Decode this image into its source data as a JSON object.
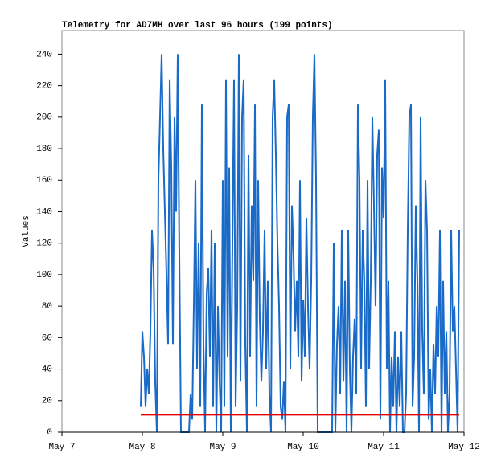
{
  "chart_data": {
    "type": "line",
    "title": "Telemetry for AD7MH over last 96 hours (199 points)",
    "y_label": "Values",
    "xlim": [
      0,
      5
    ],
    "xticks": [
      {
        "value": 0,
        "label": "May 7"
      },
      {
        "value": 1,
        "label": "May 8"
      },
      {
        "value": 2,
        "label": "May 9"
      },
      {
        "value": 3,
        "label": "May 10"
      },
      {
        "value": 4,
        "label": "May 11"
      },
      {
        "value": 5,
        "label": "May 12"
      }
    ],
    "ylim": [
      0,
      255
    ],
    "yticks": [
      0,
      20,
      40,
      60,
      80,
      100,
      120,
      140,
      160,
      180,
      200,
      220,
      240
    ],
    "grid": false,
    "series": [
      {
        "color": "#1a6ac8",
        "x": [
          0.98,
          1,
          1.02,
          1.04,
          1.06,
          1.08,
          1.1,
          1.12,
          1.14,
          1.16,
          1.18,
          1.2,
          1.22,
          1.24,
          1.26,
          1.28,
          1.3,
          1.32,
          1.34,
          1.36,
          1.38,
          1.4,
          1.42,
          1.44,
          1.46,
          1.48,
          1.5,
          1.52,
          1.54,
          1.56,
          1.58,
          1.6,
          1.62,
          1.64,
          1.66,
          1.68,
          1.7,
          1.72,
          1.74,
          1.76,
          1.78,
          1.8,
          1.82,
          1.84,
          1.86,
          1.88,
          1.9,
          1.92,
          1.94,
          1.96,
          1.98,
          2,
          2.02,
          2.04,
          2.06,
          2.08,
          2.1,
          2.12,
          2.14,
          2.16,
          2.18,
          2.2,
          2.22,
          2.24,
          2.26,
          2.28,
          2.3,
          2.32,
          2.34,
          2.36,
          2.38,
          2.4,
          2.42,
          2.44,
          2.46,
          2.48,
          2.5,
          2.52,
          2.54,
          2.56,
          2.58,
          2.6,
          2.62,
          2.64,
          2.66,
          2.68,
          2.7,
          2.72,
          2.74,
          2.76,
          2.78,
          2.8,
          2.82,
          2.84,
          2.86,
          2.88,
          2.9,
          2.92,
          2.94,
          2.96,
          2.98,
          3,
          3.02,
          3.04,
          3.06,
          3.08,
          3.1,
          3.12,
          3.14,
          3.16,
          3.18,
          3.2,
          3.22,
          3.24,
          3.26,
          3.28,
          3.3,
          3.32,
          3.34,
          3.36,
          3.38,
          3.4,
          3.42,
          3.44,
          3.46,
          3.48,
          3.5,
          3.52,
          3.54,
          3.56,
          3.58,
          3.6,
          3.62,
          3.64,
          3.66,
          3.68,
          3.7,
          3.72,
          3.74,
          3.76,
          3.78,
          3.8,
          3.82,
          3.84,
          3.86,
          3.88,
          3.9,
          3.92,
          3.94,
          3.96,
          3.98,
          4,
          4.02,
          4.04,
          4.06,
          4.08,
          4.1,
          4.12,
          4.14,
          4.16,
          4.18,
          4.2,
          4.22,
          4.24,
          4.26,
          4.28,
          4.3,
          4.32,
          4.34,
          4.36,
          4.38,
          4.4,
          4.42,
          4.44,
          4.46,
          4.48,
          4.5,
          4.52,
          4.54,
          4.56,
          4.58,
          4.6,
          4.62,
          4.64,
          4.66,
          4.68,
          4.7,
          4.72,
          4.74,
          4.76,
          4.78,
          4.8,
          4.82,
          4.84,
          4.86,
          4.88,
          4.9,
          4.92,
          4.94
        ],
        "values": [
          16,
          64,
          48,
          16,
          40,
          24,
          64,
          128,
          104,
          32,
          0,
          160,
          200,
          240,
          180,
          140,
          100,
          56,
          224,
          168,
          56,
          200,
          140,
          240,
          112,
          0,
          0,
          0,
          0,
          0,
          0,
          24,
          8,
          80,
          160,
          40,
          120,
          16,
          208,
          56,
          0,
          88,
          104,
          48,
          128,
          16,
          120,
          0,
          80,
          32,
          0,
          160,
          16,
          224,
          48,
          168,
          0,
          120,
          224,
          16,
          80,
          240,
          32,
          200,
          224,
          56,
          0,
          176,
          48,
          144,
          96,
          208,
          16,
          160,
          72,
          32,
          64,
          128,
          40,
          96,
          24,
          0,
          200,
          224,
          176,
          120,
          80,
          16,
          8,
          32,
          0,
          200,
          208,
          40,
          144,
          112,
          64,
          96,
          48,
          160,
          32,
          84,
          48,
          136,
          80,
          40,
          96,
          200,
          240,
          160,
          0,
          0,
          0,
          0,
          0,
          0,
          0,
          0,
          0,
          0,
          120,
          0,
          56,
          80,
          24,
          128,
          32,
          96,
          0,
          128,
          40,
          0,
          48,
          72,
          24,
          208,
          160,
          40,
          128,
          96,
          16,
          160,
          40,
          96,
          200,
          144,
          80,
          176,
          192,
          8,
          168,
          136,
          224,
          40,
          96,
          0,
          48,
          16,
          64,
          0,
          48,
          16,
          64,
          0,
          0,
          24,
          128,
          200,
          208,
          16,
          48,
          144,
          96,
          0,
          200,
          64,
          24,
          160,
          128,
          8,
          40,
          0,
          56,
          24,
          80,
          48,
          128,
          0,
          96,
          24,
          64,
          0,
          24,
          128,
          64,
          80,
          40,
          0,
          128
        ]
      },
      {
        "color": "#e00000",
        "x": [
          0.98,
          4.94
        ],
        "values": [
          11,
          11
        ]
      }
    ]
  }
}
